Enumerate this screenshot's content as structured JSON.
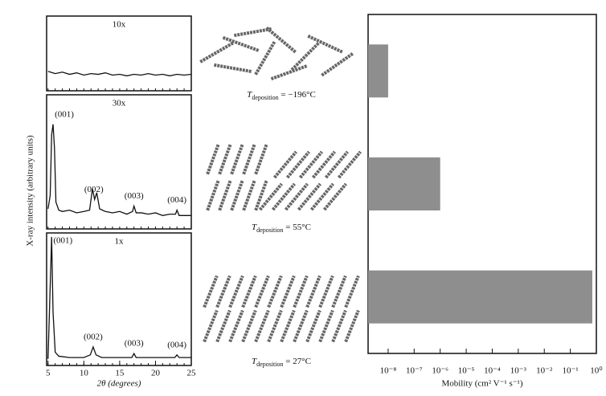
{
  "chart_data": [
    {
      "type": "line",
      "panel_label": "10x",
      "ylabel": "X-ray intensity  (arbitrary units)",
      "x": [
        5,
        6,
        7,
        8,
        9,
        10,
        11,
        12,
        13,
        14,
        15,
        16,
        17,
        18,
        19,
        20,
        21,
        22,
        23,
        24,
        25
      ],
      "values": [
        0.26,
        0.23,
        0.25,
        0.22,
        0.24,
        0.21,
        0.23,
        0.22,
        0.24,
        0.21,
        0.22,
        0.2,
        0.22,
        0.21,
        0.23,
        0.21,
        0.22,
        0.2,
        0.22,
        0.21,
        0.22
      ],
      "xlim": [
        4.8,
        25
      ],
      "ylim": [
        0,
        1
      ],
      "color": "#111111",
      "peaks": []
    },
    {
      "type": "line",
      "panel_label": "30x",
      "x": [
        5,
        5.3,
        5.5,
        5.7,
        5.9,
        6.1,
        6.5,
        7,
        8,
        9,
        10,
        10.8,
        11.2,
        11.5,
        11.8,
        12.2,
        13,
        14,
        15,
        16,
        16.8,
        17,
        17.3,
        18,
        19,
        20,
        21,
        22,
        22.8,
        23,
        23.3,
        24,
        25
      ],
      "values": [
        0.15,
        0.25,
        0.7,
        0.78,
        0.6,
        0.2,
        0.14,
        0.13,
        0.14,
        0.12,
        0.13,
        0.14,
        0.3,
        0.22,
        0.27,
        0.15,
        0.13,
        0.12,
        0.13,
        0.11,
        0.13,
        0.17,
        0.12,
        0.12,
        0.11,
        0.12,
        0.1,
        0.11,
        0.11,
        0.14,
        0.1,
        0.1,
        0.1
      ],
      "xlim": [
        4.8,
        25
      ],
      "ylim": [
        0,
        1
      ],
      "color": "#111111",
      "peaks": [
        {
          "label": "(001)",
          "x": 5.7
        },
        {
          "label": "(002)",
          "x": 11.4
        },
        {
          "label": "(003)",
          "x": 17
        },
        {
          "label": "(004)",
          "x": 23
        }
      ]
    },
    {
      "type": "line",
      "panel_label": "1x",
      "xlabel": "2θ  (degrees)",
      "x": [
        5,
        5.3,
        5.5,
        5.7,
        6,
        6.5,
        8,
        10,
        10.9,
        11.3,
        11.7,
        12.5,
        15,
        16.7,
        17,
        17.3,
        20,
        22.7,
        23,
        23.3,
        25
      ],
      "values": [
        0.05,
        0.6,
        0.97,
        0.4,
        0.1,
        0.07,
        0.06,
        0.06,
        0.08,
        0.14,
        0.08,
        0.06,
        0.06,
        0.06,
        0.09,
        0.06,
        0.06,
        0.06,
        0.08,
        0.06,
        0.06
      ],
      "xlim": [
        4.8,
        25
      ],
      "xticks": [
        5,
        10,
        15,
        20,
        25
      ],
      "ylim": [
        0,
        1
      ],
      "color": "#111111",
      "peaks": [
        {
          "label": "(001)",
          "x": 5.5
        },
        {
          "label": "(002)",
          "x": 11.3
        },
        {
          "label": "(003)",
          "x": 17
        },
        {
          "label": "(004)",
          "x": 23
        }
      ]
    },
    {
      "type": "bar",
      "orientation": "horizontal",
      "log_scale": true,
      "xlabel": "Mobility  (cm² V⁻¹ s⁻¹)",
      "categories": [
        null,
        null,
        null
      ],
      "values": [
        1e-08,
        1e-06,
        0.7
      ],
      "color": "#8e8e8e",
      "xlim": [
        1.7e-09,
        1
      ],
      "xticks": [
        {
          "value": 1e-08,
          "label": "10⁻⁸"
        },
        {
          "value": 1e-07,
          "label": "10⁻⁷"
        },
        {
          "value": 1e-06,
          "label": "10⁻⁶"
        },
        {
          "value": 1e-05,
          "label": "10⁻⁵"
        },
        {
          "value": 0.0001,
          "label": "10⁻⁴"
        },
        {
          "value": 0.001,
          "label": "10⁻³"
        },
        {
          "value": 0.01,
          "label": "10⁻²"
        },
        {
          "value": 0.1,
          "label": "10⁻¹"
        },
        {
          "value": 1,
          "label": "10⁰"
        }
      ]
    }
  ],
  "structures": [
    {
      "symbol": "T",
      "subscript": "deposition",
      "rest": " = −196°C"
    },
    {
      "symbol": "T",
      "subscript": "deposition",
      "rest": " = 55°C"
    },
    {
      "symbol": "T",
      "subscript": "deposition",
      "rest": " = 27°C"
    }
  ]
}
